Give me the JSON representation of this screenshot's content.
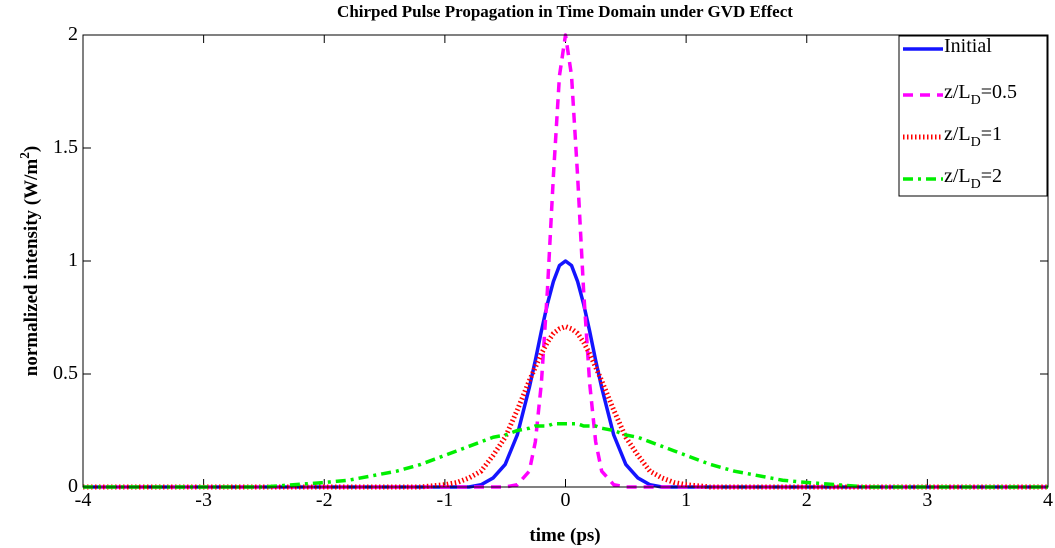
{
  "chart_data": {
    "type": "line",
    "title": "Chirped Pulse Propagation in Time Domain under GVD Effect",
    "xlabel": "time (ps)",
    "ylabel": "normalized intensity (W/m2)",
    "x": [
      -4,
      -3,
      -2.5,
      -2,
      -1.8,
      -1.6,
      -1.4,
      -1.2,
      -1,
      -0.9,
      -0.8,
      -0.7,
      -0.6,
      -0.5,
      -0.4,
      -0.3,
      -0.25,
      -0.2,
      -0.15,
      -0.1,
      -0.05,
      0,
      0.05,
      0.1,
      0.15,
      0.2,
      0.25,
      0.3,
      0.4,
      0.5,
      0.6,
      0.7,
      0.8,
      0.9,
      1,
      1.2,
      1.4,
      1.6,
      1.8,
      2,
      2.5,
      3,
      4
    ],
    "series": [
      {
        "name": "Initial",
        "color": "#1414ff",
        "dash": "solid",
        "values": [
          0,
          0,
          0,
          0,
          0,
          0,
          0,
          0,
          0,
          0,
          0,
          0.01,
          0.04,
          0.1,
          0.23,
          0.44,
          0.56,
          0.69,
          0.81,
          0.91,
          0.98,
          1,
          0.98,
          0.91,
          0.81,
          0.69,
          0.56,
          0.44,
          0.23,
          0.1,
          0.04,
          0.01,
          0,
          0,
          0,
          0,
          0,
          0,
          0,
          0,
          0,
          0,
          0
        ]
      },
      {
        "name": "z/LD=0.5",
        "color": "#ff00ff",
        "dash": "dashed",
        "values": [
          0,
          0,
          0,
          0,
          0,
          0,
          0,
          0,
          0,
          0,
          0,
          0,
          0,
          0,
          0.01,
          0.07,
          0.2,
          0.46,
          0.87,
          1.38,
          1.82,
          2,
          1.82,
          1.38,
          0.87,
          0.46,
          0.2,
          0.07,
          0.01,
          0,
          0,
          0,
          0,
          0,
          0,
          0,
          0,
          0,
          0,
          0,
          0,
          0,
          0
        ]
      },
      {
        "name": "z/LD=1",
        "color": "#ff0000",
        "dash": "dotted",
        "values": [
          0,
          0,
          0,
          0,
          0,
          0,
          0,
          0,
          0.01,
          0.02,
          0.04,
          0.07,
          0.14,
          0.22,
          0.34,
          0.47,
          0.53,
          0.59,
          0.64,
          0.68,
          0.7,
          0.71,
          0.7,
          0.68,
          0.64,
          0.59,
          0.53,
          0.47,
          0.34,
          0.22,
          0.14,
          0.07,
          0.04,
          0.02,
          0.01,
          0,
          0,
          0,
          0,
          0,
          0,
          0,
          0
        ]
      },
      {
        "name": "z/LD=2",
        "color": "#00ee00",
        "dash": "dashdot",
        "values": [
          0,
          0,
          0,
          0.02,
          0.03,
          0.05,
          0.07,
          0.1,
          0.14,
          0.16,
          0.18,
          0.2,
          0.22,
          0.23,
          0.25,
          0.26,
          0.27,
          0.27,
          0.27,
          0.28,
          0.28,
          0.28,
          0.28,
          0.28,
          0.27,
          0.27,
          0.27,
          0.26,
          0.25,
          0.23,
          0.22,
          0.2,
          0.18,
          0.16,
          0.14,
          0.1,
          0.07,
          0.05,
          0.03,
          0.02,
          0,
          0,
          0
        ]
      }
    ],
    "xlim": [
      -4,
      4
    ],
    "xticks": [
      -4,
      -3,
      -2,
      -1,
      0,
      1,
      2,
      3,
      4
    ],
    "ylim": [
      0,
      2
    ],
    "yticks": [
      0,
      0.5,
      1,
      1.5,
      2
    ],
    "grid": false,
    "legend": "upper right"
  }
}
